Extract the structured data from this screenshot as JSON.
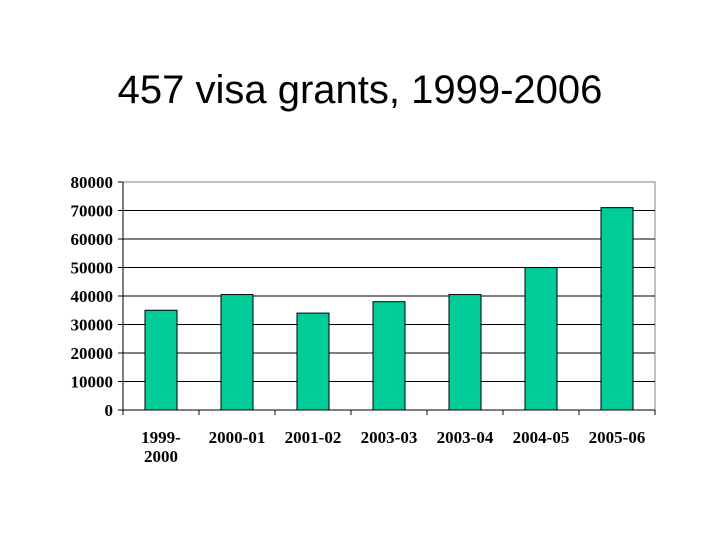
{
  "chart_data": {
    "type": "bar",
    "title": "457 visa grants, 1999-2006",
    "xlabel": "",
    "ylabel": "",
    "categories": [
      "1999-2000",
      "2000-01",
      "2001-02",
      "2003-03",
      "2003-04",
      "2004-05",
      "2005-06"
    ],
    "category_lines": [
      [
        "1999-",
        "2000"
      ],
      [
        "2000-01"
      ],
      [
        "2001-02"
      ],
      [
        "2003-03"
      ],
      [
        "2003-04"
      ],
      [
        "2004-05"
      ],
      [
        "2005-06"
      ]
    ],
    "values": [
      35000,
      40500,
      34000,
      38000,
      40500,
      50000,
      71000
    ],
    "ylim": [
      0,
      80000
    ],
    "yticks": [
      "0",
      "10000",
      "20000",
      "30000",
      "40000",
      "50000",
      "60000",
      "70000",
      "80000"
    ],
    "grid": true,
    "legend": "none",
    "bar_color": "#00CC99"
  }
}
